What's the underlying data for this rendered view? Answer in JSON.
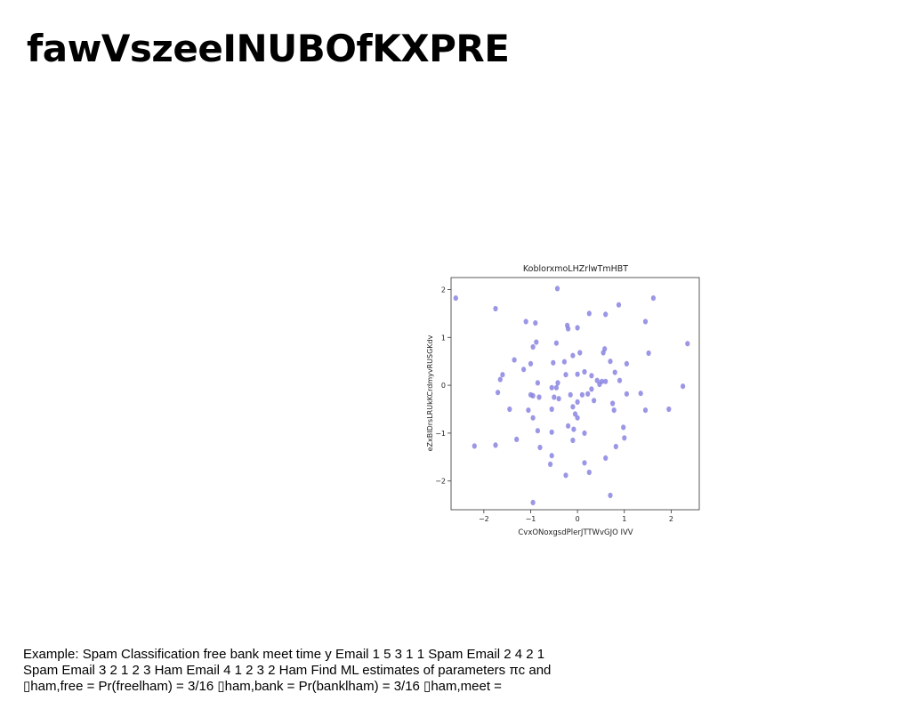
{
  "slide": {
    "title": "fawVszeeINUBOfKXPRE",
    "caption_lines": [
      "Example: Spam Classification free bank meet time y Email 1 5 3 1 1 Spam Email 2 4 2 1",
      "Spam Email 3 2 1 2 3 Ham Email 4 1 2 3 2 Ham Find ML estimates of parameters πc and",
      "▯ham,free = Pr(freelham) = 3/16 ▯ham,bank = Pr(banklham) = 3/16 ▯ham,meet ="
    ]
  },
  "chart_data": {
    "type": "scatter",
    "title": "KoblorxmoLHZrlwTmHBT",
    "xlabel": "CvxONoxgsdPlerJTTWvGJO IVV",
    "ylabel": "eZxBIDrsLRUkKCrdmyvRUSGKdv",
    "xlim": [
      -2.7,
      2.6
    ],
    "ylim": [
      -2.6,
      2.25
    ],
    "xticks": [
      -2,
      -1,
      0,
      1,
      2
    ],
    "yticks": [
      -2,
      -1,
      0,
      1,
      2
    ],
    "xtick_labels": [
      "−2",
      "−1",
      "0",
      "1",
      "2"
    ],
    "ytick_labels": [
      "−2",
      "−1",
      "0",
      "1",
      "2"
    ],
    "grid": false,
    "point_color": "#8a84e0",
    "points": [
      [
        -2.6,
        1.82
      ],
      [
        -1.75,
        1.6
      ],
      [
        -0.43,
        2.02
      ],
      [
        0.25,
        1.5
      ],
      [
        0.88,
        1.68
      ],
      [
        1.62,
        1.82
      ],
      [
        -1.1,
        1.33
      ],
      [
        -0.9,
        1.3
      ],
      [
        -0.22,
        1.25
      ],
      [
        -0.2,
        1.18
      ],
      [
        0.0,
        1.2
      ],
      [
        0.6,
        1.48
      ],
      [
        1.45,
        1.33
      ],
      [
        2.35,
        0.87
      ],
      [
        -0.88,
        0.9
      ],
      [
        -0.95,
        0.8
      ],
      [
        -0.45,
        0.88
      ],
      [
        -0.1,
        0.62
      ],
      [
        0.05,
        0.68
      ],
      [
        0.58,
        0.76
      ],
      [
        0.55,
        0.68
      ],
      [
        1.52,
        0.67
      ],
      [
        -1.35,
        0.53
      ],
      [
        -1.0,
        0.45
      ],
      [
        -0.52,
        0.47
      ],
      [
        -0.28,
        0.49
      ],
      [
        0.7,
        0.5
      ],
      [
        1.05,
        0.45
      ],
      [
        -1.15,
        0.33
      ],
      [
        -1.6,
        0.22
      ],
      [
        -1.65,
        0.12
      ],
      [
        -0.25,
        0.22
      ],
      [
        0.0,
        0.23
      ],
      [
        0.15,
        0.28
      ],
      [
        0.3,
        0.2
      ],
      [
        0.8,
        0.27
      ],
      [
        -0.85,
        0.05
      ],
      [
        -0.42,
        0.05
      ],
      [
        -0.45,
        -0.05
      ],
      [
        0.42,
        0.1
      ],
      [
        0.47,
        0.02
      ],
      [
        0.52,
        0.08
      ],
      [
        0.6,
        0.08
      ],
      [
        0.9,
        0.1
      ],
      [
        2.25,
        -0.02
      ],
      [
        -0.55,
        -0.05
      ],
      [
        -1.7,
        -0.15
      ],
      [
        -1.0,
        -0.2
      ],
      [
        -0.95,
        -0.22
      ],
      [
        -0.82,
        -0.25
      ],
      [
        -0.5,
        -0.25
      ],
      [
        -0.4,
        -0.28
      ],
      [
        -0.15,
        -0.2
      ],
      [
        0.1,
        -0.2
      ],
      [
        0.22,
        -0.18
      ],
      [
        0.3,
        -0.08
      ],
      [
        0.35,
        -0.32
      ],
      [
        1.05,
        -0.18
      ],
      [
        1.35,
        -0.17
      ],
      [
        0.0,
        -0.35
      ],
      [
        -0.1,
        -0.45
      ],
      [
        0.75,
        -0.38
      ],
      [
        -1.45,
        -0.5
      ],
      [
        -1.05,
        -0.52
      ],
      [
        -0.55,
        -0.5
      ],
      [
        -0.05,
        -0.6
      ],
      [
        0.0,
        -0.68
      ],
      [
        0.78,
        -0.52
      ],
      [
        1.45,
        -0.52
      ],
      [
        1.95,
        -0.5
      ],
      [
        -0.95,
        -0.68
      ],
      [
        -0.2,
        -0.85
      ],
      [
        -0.08,
        -0.92
      ],
      [
        0.15,
        -1.0
      ],
      [
        0.98,
        -0.88
      ],
      [
        -0.85,
        -0.95
      ],
      [
        -0.55,
        -0.98
      ],
      [
        -1.3,
        -1.13
      ],
      [
        -0.1,
        -1.15
      ],
      [
        1.0,
        -1.1
      ],
      [
        -2.2,
        -1.27
      ],
      [
        -1.75,
        -1.25
      ],
      [
        -0.8,
        -1.3
      ],
      [
        0.82,
        -1.28
      ],
      [
        -0.55,
        -1.47
      ],
      [
        0.6,
        -1.52
      ],
      [
        -0.58,
        -1.65
      ],
      [
        0.15,
        -1.62
      ],
      [
        -0.25,
        -1.88
      ],
      [
        0.25,
        -1.82
      ],
      [
        0.7,
        -2.3
      ],
      [
        -0.95,
        -2.45
      ]
    ]
  }
}
